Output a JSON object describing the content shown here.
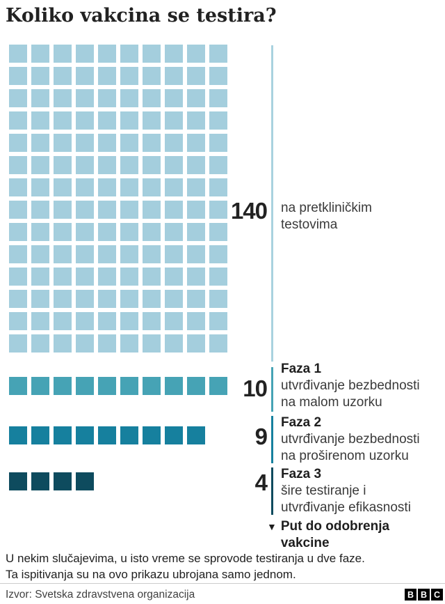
{
  "title": "Koliko vakcina se testira?",
  "colors": {
    "preclinical_square": "#a4cedd",
    "preclinical_line": "#a9d2df",
    "phase1": "#46a3b5",
    "phase2": "#16809e",
    "phase3": "#0e4b5e",
    "number_text": "#222222",
    "body_text": "#3a3a3a",
    "divider": "#cccccc"
  },
  "chart_data": {
    "type": "bar",
    "subtype": "waffle-pictogram",
    "categories": [
      "na pretkliničkim testovima",
      "Faza 1",
      "Faza 2",
      "Faza 3"
    ],
    "values": [
      140,
      10,
      9,
      4
    ],
    "columns_per_row": 10,
    "groups": [
      {
        "value": 140,
        "label": "140",
        "phase": "",
        "desc_lines": [
          "na pretkliničkim",
          "testovima"
        ],
        "square_color": "#a4cedd",
        "line_color": "#a9d2df"
      },
      {
        "value": 10,
        "label": "10",
        "phase": "Faza 1",
        "desc_lines": [
          "utvrđivanje bezbednosti",
          "na malom uzorku"
        ],
        "square_color": "#46a3b5",
        "line_color": "#46a3b5"
      },
      {
        "value": 9,
        "label": "9",
        "phase": "Faza 2",
        "desc_lines": [
          "utvrđivanje bezbednosti",
          "na proširenom uzorku"
        ],
        "square_color": "#16809e",
        "line_color": "#16809e"
      },
      {
        "value": 4,
        "label": "4",
        "phase": "Faza 3",
        "desc_lines": [
          "šire testiranje i",
          "utvrđivanje efikasnosti"
        ],
        "square_color": "#0e4b5e",
        "line_color": "#0e4b5e"
      }
    ],
    "legend_note": {
      "arrow": "▼",
      "lines": [
        "Put do odobrenja",
        "vakcine"
      ]
    }
  },
  "footer": {
    "note_lines": [
      "U nekim slučajevima, u isto vreme se sprovode testiranja u dve faze.",
      "Ta ispitivanja su na ovo prikazu ubrojana samo jednom."
    ],
    "source": "Izvor: Svetska zdravstvena organizacija"
  },
  "brand": {
    "letters": [
      "B",
      "B",
      "C"
    ]
  }
}
